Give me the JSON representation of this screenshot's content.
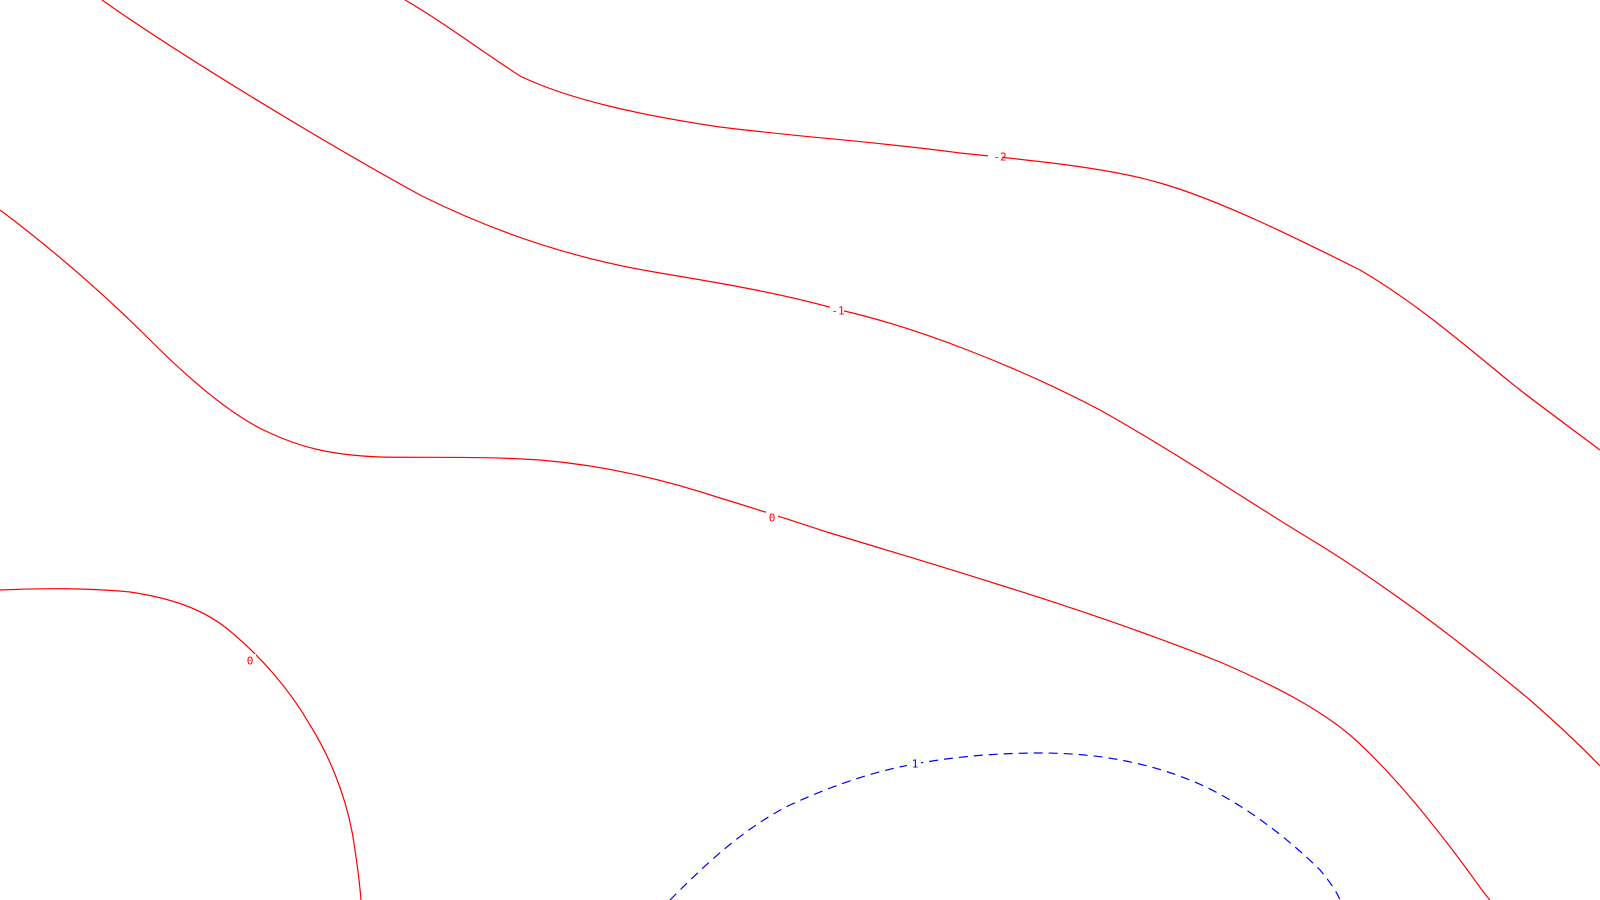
{
  "contours": [
    {
      "name": "contour-line-neg2",
      "level": "-2",
      "color": "#ff0000",
      "dashed": false
    },
    {
      "name": "contour-line-neg1",
      "level": "-1",
      "color": "#ff0000",
      "dashed": false
    },
    {
      "name": "contour-line-0-upper",
      "level": "0",
      "color": "#ff0000",
      "dashed": false
    },
    {
      "name": "contour-line-0-lower-left",
      "level": "0",
      "color": "#ff0000",
      "dashed": false
    },
    {
      "name": "contour-line-0-lower-right",
      "level": "",
      "color": "#ff0000",
      "dashed": false
    },
    {
      "name": "contour-line-1",
      "level": "1",
      "color": "#0000ff",
      "dashed": true
    }
  ]
}
